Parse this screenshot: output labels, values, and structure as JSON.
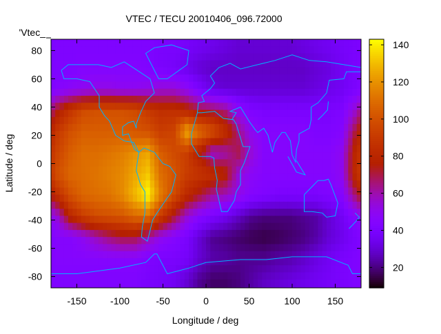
{
  "chart_data": {
    "type": "heatmap",
    "title": "VTEC / TECU 20010406_096.72000",
    "key_label": "'Vtec_",
    "xlabel": "Longitude / deg",
    "ylabel": "Latitude / deg",
    "xlim": [
      -180,
      180
    ],
    "ylim": [
      -88,
      88
    ],
    "cblim": [
      9,
      143
    ],
    "xticks": [
      "-150",
      "-100",
      "-50",
      "0",
      "50",
      "100",
      "150"
    ],
    "xtick_values": [
      -150,
      -100,
      -50,
      0,
      50,
      100,
      150
    ],
    "yticks": [
      "80",
      "60",
      "40",
      "20",
      "0",
      "-20",
      "-40",
      "-60",
      "-80"
    ],
    "ytick_values": [
      80,
      60,
      40,
      20,
      0,
      -20,
      -40,
      -60,
      -80
    ],
    "cbticks": [
      "140",
      "120",
      "100",
      "80",
      "60",
      "40",
      "20"
    ],
    "cbtick_values": [
      140,
      120,
      100,
      80,
      60,
      40,
      20
    ],
    "lon_centers": [
      -172.5,
      -157.5,
      -142.5,
      -127.5,
      -112.5,
      -97.5,
      -82.5,
      -67.5,
      -52.5,
      -37.5,
      -22.5,
      -7.5,
      7.5,
      22.5,
      37.5,
      52.5,
      67.5,
      82.5,
      97.5,
      112.5,
      127.5,
      142.5,
      157.5,
      172.5
    ],
    "lat_centers": [
      82.5,
      67.5,
      52.5,
      37.5,
      22.5,
      7.5,
      -7.5,
      -22.5,
      -37.5,
      -52.5,
      -67.5,
      -82.5
    ],
    "values": [
      [
        42,
        42,
        42,
        42,
        42,
        42,
        42,
        42,
        40,
        40,
        38,
        36,
        34,
        32,
        30,
        30,
        30,
        30,
        30,
        32,
        34,
        36,
        38,
        40
      ],
      [
        42,
        42,
        44,
        44,
        44,
        44,
        44,
        42,
        40,
        38,
        34,
        30,
        28,
        28,
        28,
        28,
        28,
        28,
        28,
        28,
        30,
        32,
        36,
        40
      ],
      [
        45,
        48,
        50,
        52,
        52,
        50,
        50,
        52,
        55,
        55,
        50,
        40,
        32,
        30,
        30,
        30,
        30,
        30,
        30,
        30,
        32,
        34,
        36,
        40
      ],
      [
        75,
        88,
        98,
        100,
        100,
        100,
        98,
        90,
        85,
        85,
        80,
        72,
        70,
        65,
        50,
        42,
        40,
        40,
        40,
        40,
        40,
        40,
        42,
        55
      ],
      [
        90,
        100,
        105,
        105,
        105,
        105,
        102,
        100,
        92,
        95,
        125,
        110,
        100,
        85,
        65,
        50,
        45,
        45,
        45,
        45,
        42,
        42,
        45,
        70
      ],
      [
        95,
        105,
        110,
        110,
        112,
        115,
        120,
        125,
        105,
        98,
        92,
        75,
        55,
        60,
        70,
        55,
        45,
        45,
        45,
        45,
        45,
        45,
        50,
        80
      ],
      [
        100,
        108,
        110,
        112,
        115,
        118,
        125,
        132,
        110,
        102,
        92,
        88,
        85,
        78,
        55,
        48,
        45,
        45,
        45,
        45,
        45,
        45,
        50,
        82
      ],
      [
        85,
        100,
        108,
        110,
        112,
        118,
        130,
        142,
        115,
        98,
        82,
        72,
        62,
        58,
        52,
        45,
        42,
        40,
        40,
        40,
        40,
        42,
        45,
        65
      ],
      [
        55,
        80,
        92,
        98,
        100,
        102,
        108,
        110,
        90,
        72,
        55,
        45,
        40,
        35,
        28,
        22,
        20,
        20,
        20,
        22,
        24,
        30,
        36,
        45
      ],
      [
        45,
        45,
        50,
        58,
        65,
        70,
        70,
        60,
        50,
        45,
        40,
        30,
        22,
        20,
        18,
        16,
        15,
        16,
        18,
        20,
        24,
        30,
        34,
        40
      ],
      [
        45,
        45,
        45,
        45,
        45,
        45,
        45,
        42,
        40,
        40,
        38,
        30,
        25,
        24,
        22,
        22,
        22,
        24,
        25,
        28,
        32,
        36,
        40,
        42
      ],
      [
        42,
        42,
        42,
        42,
        42,
        42,
        42,
        40,
        38,
        36,
        30,
        22,
        18,
        18,
        20,
        24,
        28,
        30,
        32,
        34,
        36,
        38,
        40,
        42
      ]
    ]
  }
}
